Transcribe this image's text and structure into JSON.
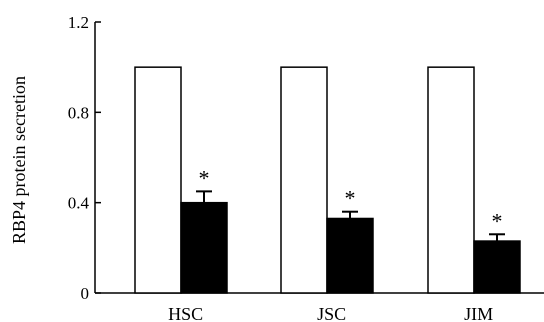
{
  "chart_data": {
    "type": "bar",
    "title": "",
    "xlabel": "",
    "ylabel": "RBP4 protein secretion",
    "ylim": [
      0,
      1.2
    ],
    "yticks": [
      "0",
      "0.4",
      "0.8",
      "1.2"
    ],
    "categories": [
      "HSC",
      "JSC",
      "JIM"
    ],
    "series": [
      {
        "values": [
          1.0,
          1.0,
          1.0
        ],
        "errors": [
          0,
          0,
          0
        ],
        "fill": "#ffffff"
      },
      {
        "values": [
          0.4,
          0.33,
          0.23
        ],
        "errors": [
          0.05,
          0.03,
          0.03
        ],
        "fill": "#000000",
        "significance": [
          "*",
          "*",
          "*"
        ]
      }
    ],
    "legend": "none",
    "grid": false
  }
}
